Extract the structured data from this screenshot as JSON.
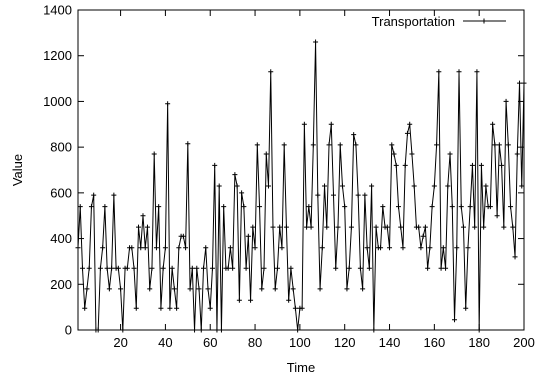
{
  "chart_data": {
    "type": "line",
    "title": "",
    "xlabel": "Time",
    "ylabel": "Value",
    "xlim": [
      1,
      200
    ],
    "ylim": [
      0,
      1400
    ],
    "x_ticks": [
      20,
      40,
      60,
      80,
      100,
      120,
      140,
      160,
      180,
      200
    ],
    "y_ticks": [
      0,
      200,
      400,
      600,
      800,
      1000,
      1200,
      1400
    ],
    "grid": false,
    "legend_position": "top-right",
    "line_color": "#000000",
    "marker": "plus",
    "series": [
      {
        "name": "Transportation",
        "x": [
          1,
          2,
          3,
          4,
          5,
          6,
          7,
          8,
          9,
          10,
          11,
          12,
          13,
          14,
          15,
          16,
          17,
          18,
          19,
          20,
          21,
          22,
          23,
          24,
          25,
          26,
          27,
          28,
          29,
          30,
          31,
          32,
          33,
          34,
          35,
          36,
          37,
          38,
          39,
          40,
          41,
          42,
          43,
          44,
          45,
          46,
          47,
          48,
          49,
          50,
          51,
          52,
          53,
          54,
          55,
          56,
          57,
          58,
          59,
          60,
          61,
          62,
          63,
          64,
          65,
          66,
          67,
          68,
          69,
          70,
          71,
          72,
          73,
          74,
          75,
          76,
          77,
          78,
          79,
          80,
          81,
          82,
          83,
          84,
          85,
          86,
          87,
          88,
          89,
          90,
          91,
          92,
          93,
          94,
          95,
          96,
          97,
          98,
          99,
          100,
          101,
          102,
          103,
          104,
          105,
          106,
          107,
          108,
          109,
          110,
          111,
          112,
          113,
          114,
          115,
          116,
          117,
          118,
          119,
          120,
          121,
          122,
          123,
          124,
          125,
          126,
          127,
          128,
          129,
          130,
          131,
          132,
          133,
          134,
          135,
          136,
          137,
          138,
          139,
          140,
          141,
          142,
          143,
          144,
          145,
          146,
          147,
          148,
          149,
          150,
          151,
          152,
          153,
          154,
          155,
          156,
          157,
          158,
          159,
          160,
          161,
          162,
          163,
          164,
          165,
          166,
          167,
          168,
          169,
          170,
          171,
          172,
          173,
          174,
          175,
          176,
          177,
          178,
          179,
          180,
          181,
          182,
          183,
          184,
          185,
          186,
          187,
          188,
          189,
          190,
          191,
          192,
          193,
          194,
          195,
          196,
          197,
          198,
          199,
          200
        ],
        "values": [
          360,
          540,
          270,
          95,
          180,
          270,
          540,
          590,
          0,
          0,
          270,
          360,
          540,
          270,
          180,
          270,
          590,
          270,
          270,
          180,
          0,
          270,
          270,
          360,
          360,
          270,
          95,
          450,
          360,
          500,
          360,
          450,
          180,
          270,
          770,
          360,
          540,
          95,
          270,
          360,
          990,
          95,
          270,
          180,
          95,
          360,
          410,
          410,
          360,
          815,
          180,
          270,
          0,
          270,
          180,
          0,
          270,
          360,
          180,
          95,
          270,
          720,
          0,
          630,
          0,
          540,
          270,
          270,
          360,
          270,
          680,
          630,
          130,
          600,
          540,
          270,
          410,
          130,
          450,
          360,
          810,
          540,
          180,
          270,
          770,
          630,
          1130,
          450,
          180,
          270,
          450,
          360,
          810,
          450,
          130,
          270,
          180,
          95,
          0,
          95,
          95,
          900,
          450,
          540,
          450,
          810,
          1260,
          590,
          180,
          360,
          630,
          450,
          810,
          900,
          590,
          270,
          450,
          810,
          630,
          540,
          180,
          270,
          450,
          855,
          810,
          590,
          270,
          180,
          590,
          360,
          270,
          630,
          0,
          450,
          360,
          360,
          540,
          450,
          450,
          360,
          810,
          770,
          720,
          540,
          450,
          360,
          720,
          860,
          900,
          770,
          630,
          450,
          450,
          360,
          410,
          450,
          270,
          360,
          540,
          630,
          810,
          1130,
          270,
          360,
          270,
          630,
          770,
          540,
          45,
          360,
          1130,
          540,
          450,
          95,
          360,
          540,
          720,
          450,
          1130,
          0,
          720,
          450,
          630,
          540,
          540,
          900,
          810,
          500,
          810,
          720,
          450,
          1000,
          810,
          540,
          450,
          320,
          770,
          1080,
          630,
          1080
        ]
      }
    ]
  }
}
